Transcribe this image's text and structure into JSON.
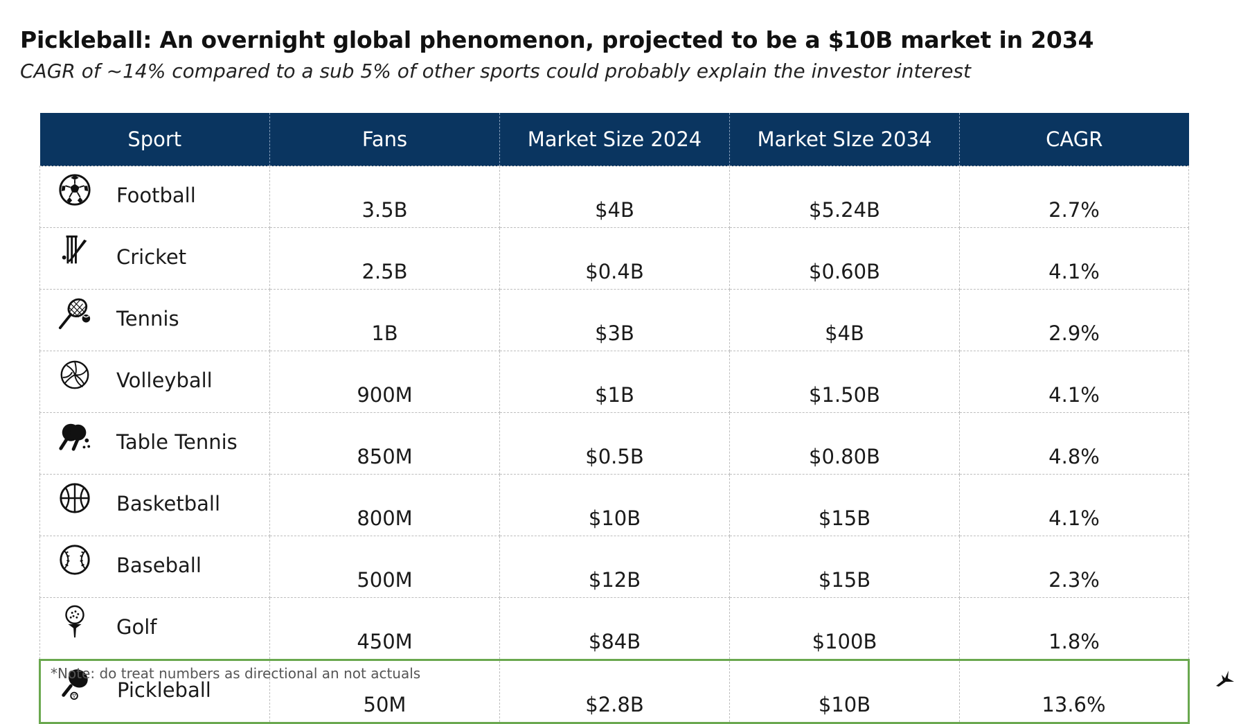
{
  "title": "Pickleball: An overnight global phenomenon, projected to be a $10B market in 2034",
  "subtitle": "CAGR of ~14% compared to a sub 5% of other sports could probably explain the investor interest",
  "table": {
    "headers": [
      "Sport",
      "Fans",
      "Market Size 2024",
      "Market SIze 2034",
      "CAGR"
    ],
    "rows": [
      {
        "sport": "Football",
        "icon": "soccer-ball-icon",
        "fans": "3.5B",
        "m2024": "$4B",
        "m2034": "$5.24B",
        "cagr": "2.7%"
      },
      {
        "sport": "Cricket",
        "icon": "cricket-bat-icon",
        "fans": "2.5B",
        "m2024": "$0.4B",
        "m2034": "$0.60B",
        "cagr": "4.1%"
      },
      {
        "sport": "Tennis",
        "icon": "tennis-racket-icon",
        "fans": "1B",
        "m2024": "$3B",
        "m2034": "$4B",
        "cagr": "2.9%"
      },
      {
        "sport": "Volleyball",
        "icon": "volleyball-icon",
        "fans": "900M",
        "m2024": "$1B",
        "m2034": "$1.50B",
        "cagr": "4.1%"
      },
      {
        "sport": "Table Tennis",
        "icon": "table-tennis-paddles-icon",
        "fans": "850M",
        "m2024": "$0.5B",
        "m2034": "$0.80B",
        "cagr": "4.8%"
      },
      {
        "sport": "Basketball",
        "icon": "basketball-icon",
        "fans": "800M",
        "m2024": "$10B",
        "m2034": "$15B",
        "cagr": "4.1%"
      },
      {
        "sport": "Baseball",
        "icon": "baseball-icon",
        "fans": "500M",
        "m2024": "$12B",
        "m2034": "$15B",
        "cagr": "2.3%"
      },
      {
        "sport": "Golf",
        "icon": "golf-ball-tee-icon",
        "fans": "450M",
        "m2024": "$84B",
        "m2034": "$100B",
        "cagr": "1.8%"
      },
      {
        "sport": "Pickleball",
        "icon": "pickleball-paddle-icon",
        "fans": "50M",
        "m2024": "$2.8B",
        "m2034": "$10B",
        "cagr": "13.6%",
        "highlight": true
      }
    ]
  },
  "note": "*Note: do treat numbers as directional an not actuals",
  "logo_icon": "bird-logo-icon",
  "colors": {
    "header_bg": "#0a3560",
    "highlight_border": "#6aa84f",
    "grid_line": "#bdbdbd"
  }
}
